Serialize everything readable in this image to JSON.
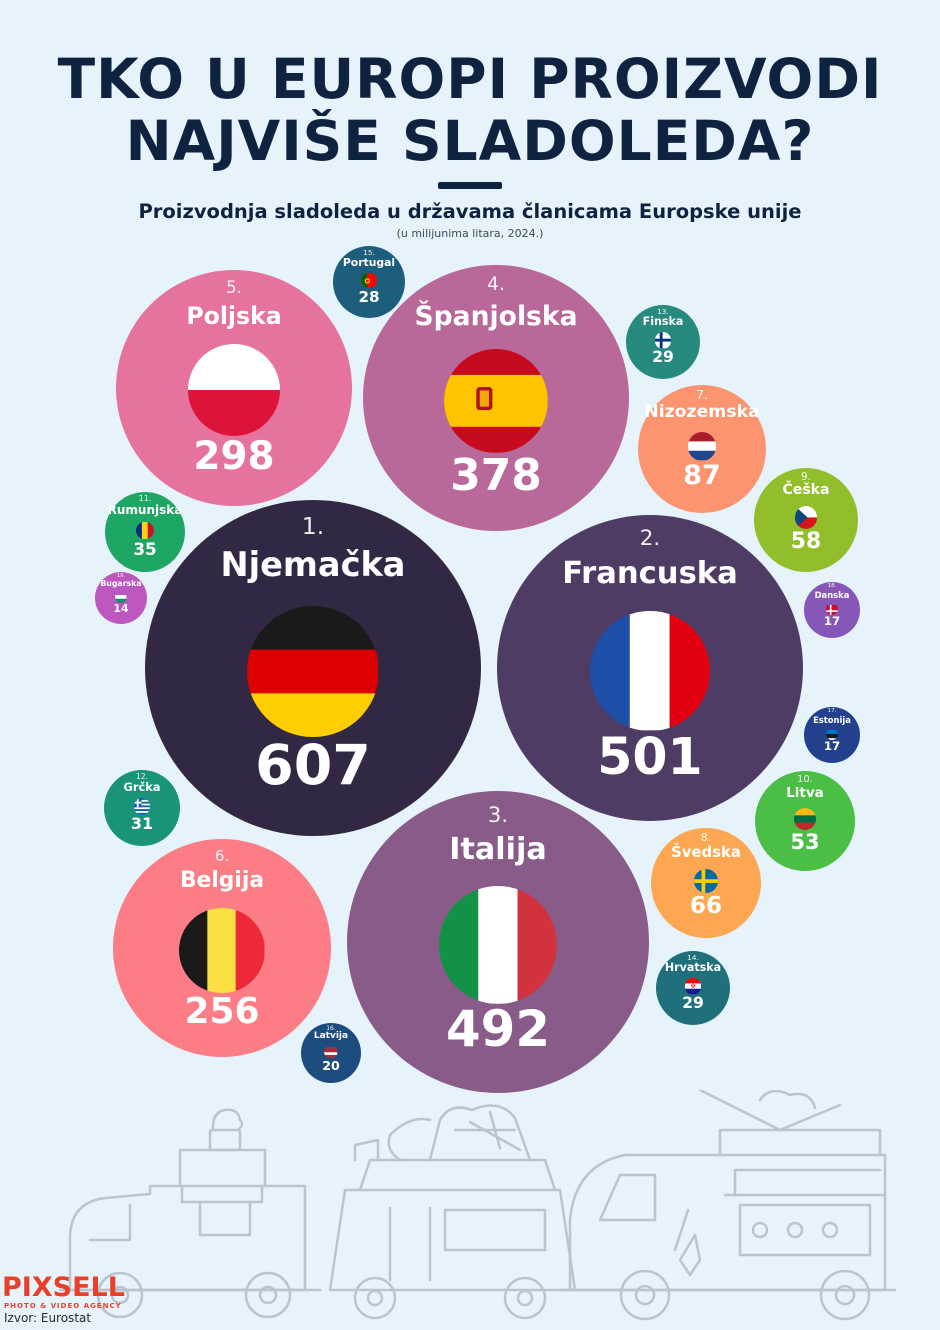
{
  "header": {
    "title_line1": "TKO U EUROPI PROIZVODI",
    "title_line2": "NAJVIŠE SLADOLEDA?",
    "subtitle": "Proizvodnja sladoleda u državama članicama Europske unije",
    "unit_note": "(u milijunima litara, 2024.)"
  },
  "chart_data": {
    "type": "bubble",
    "title": "Proizvodnja sladoleda u državama članicama Europske unije",
    "unit": "(u milijunima litara, 2024.)",
    "series": [
      {
        "rank": "1.",
        "country": "Njemačka",
        "value": 607,
        "color": "#332843",
        "flag": "de"
      },
      {
        "rank": "2.",
        "country": "Francuska",
        "value": 501,
        "color": "#4f3c65",
        "flag": "fr"
      },
      {
        "rank": "3.",
        "country": "Italija",
        "value": 492,
        "color": "#885b88",
        "flag": "it"
      },
      {
        "rank": "4.",
        "country": "Španjolska",
        "value": 378,
        "color": "#b9689a",
        "flag": "es"
      },
      {
        "rank": "5.",
        "country": "Poljska",
        "value": 298,
        "color": "#e5739e",
        "flag": "pl"
      },
      {
        "rank": "6.",
        "country": "Belgija",
        "value": 256,
        "color": "#fc7d85",
        "flag": "be"
      },
      {
        "rank": "7.",
        "country": "Nizozemska",
        "value": 87,
        "color": "#fd9470",
        "flag": "nl"
      },
      {
        "rank": "8.",
        "country": "Švedska",
        "value": 66,
        "color": "#fda752",
        "flag": "se"
      },
      {
        "rank": "9.",
        "country": "Češka",
        "value": 58,
        "color": "#92be2c",
        "flag": "cz"
      },
      {
        "rank": "10.",
        "country": "Litva",
        "value": 53,
        "color": "#4bbf45",
        "flag": "lt"
      },
      {
        "rank": "11.",
        "country": "Rumunjska",
        "value": 35,
        "color": "#1ea665",
        "flag": "ro"
      },
      {
        "rank": "12.",
        "country": "Grčka",
        "value": 31,
        "color": "#199478",
        "flag": "gr"
      },
      {
        "rank": "13.",
        "country": "Finska",
        "value": 29,
        "color": "#278a7e",
        "flag": "fi"
      },
      {
        "rank": "14.",
        "country": "Hrvatska",
        "value": 29,
        "color": "#20707c",
        "flag": "hr"
      },
      {
        "rank": "15.",
        "country": "Portugal",
        "value": 28,
        "color": "#1d5e7d",
        "flag": "pt"
      },
      {
        "rank": "16.",
        "country": "Latvija",
        "value": 20,
        "color": "#1d4c7e",
        "flag": "lv"
      },
      {
        "rank": "17.",
        "country": "Estonija",
        "value": 17,
        "color": "#23418c",
        "flag": "ee"
      },
      {
        "rank": "18.",
        "country": "Danska",
        "value": 17,
        "color": "#8757b8",
        "flag": "dk"
      },
      {
        "rank": "19.",
        "country": "Bugarska",
        "value": 14,
        "color": "#bc57c0",
        "flag": "bg"
      }
    ]
  },
  "footer": {
    "brand": "PIXSELL",
    "brand_tagline": "PHOTO & VIDEO AGENCY",
    "source": "Izvor: Eurostat"
  },
  "colors": {
    "background": "#e6f3fa",
    "title": "#0f2341",
    "decoration_stroke": "#b9c4ce",
    "brand": "#e8402b"
  }
}
